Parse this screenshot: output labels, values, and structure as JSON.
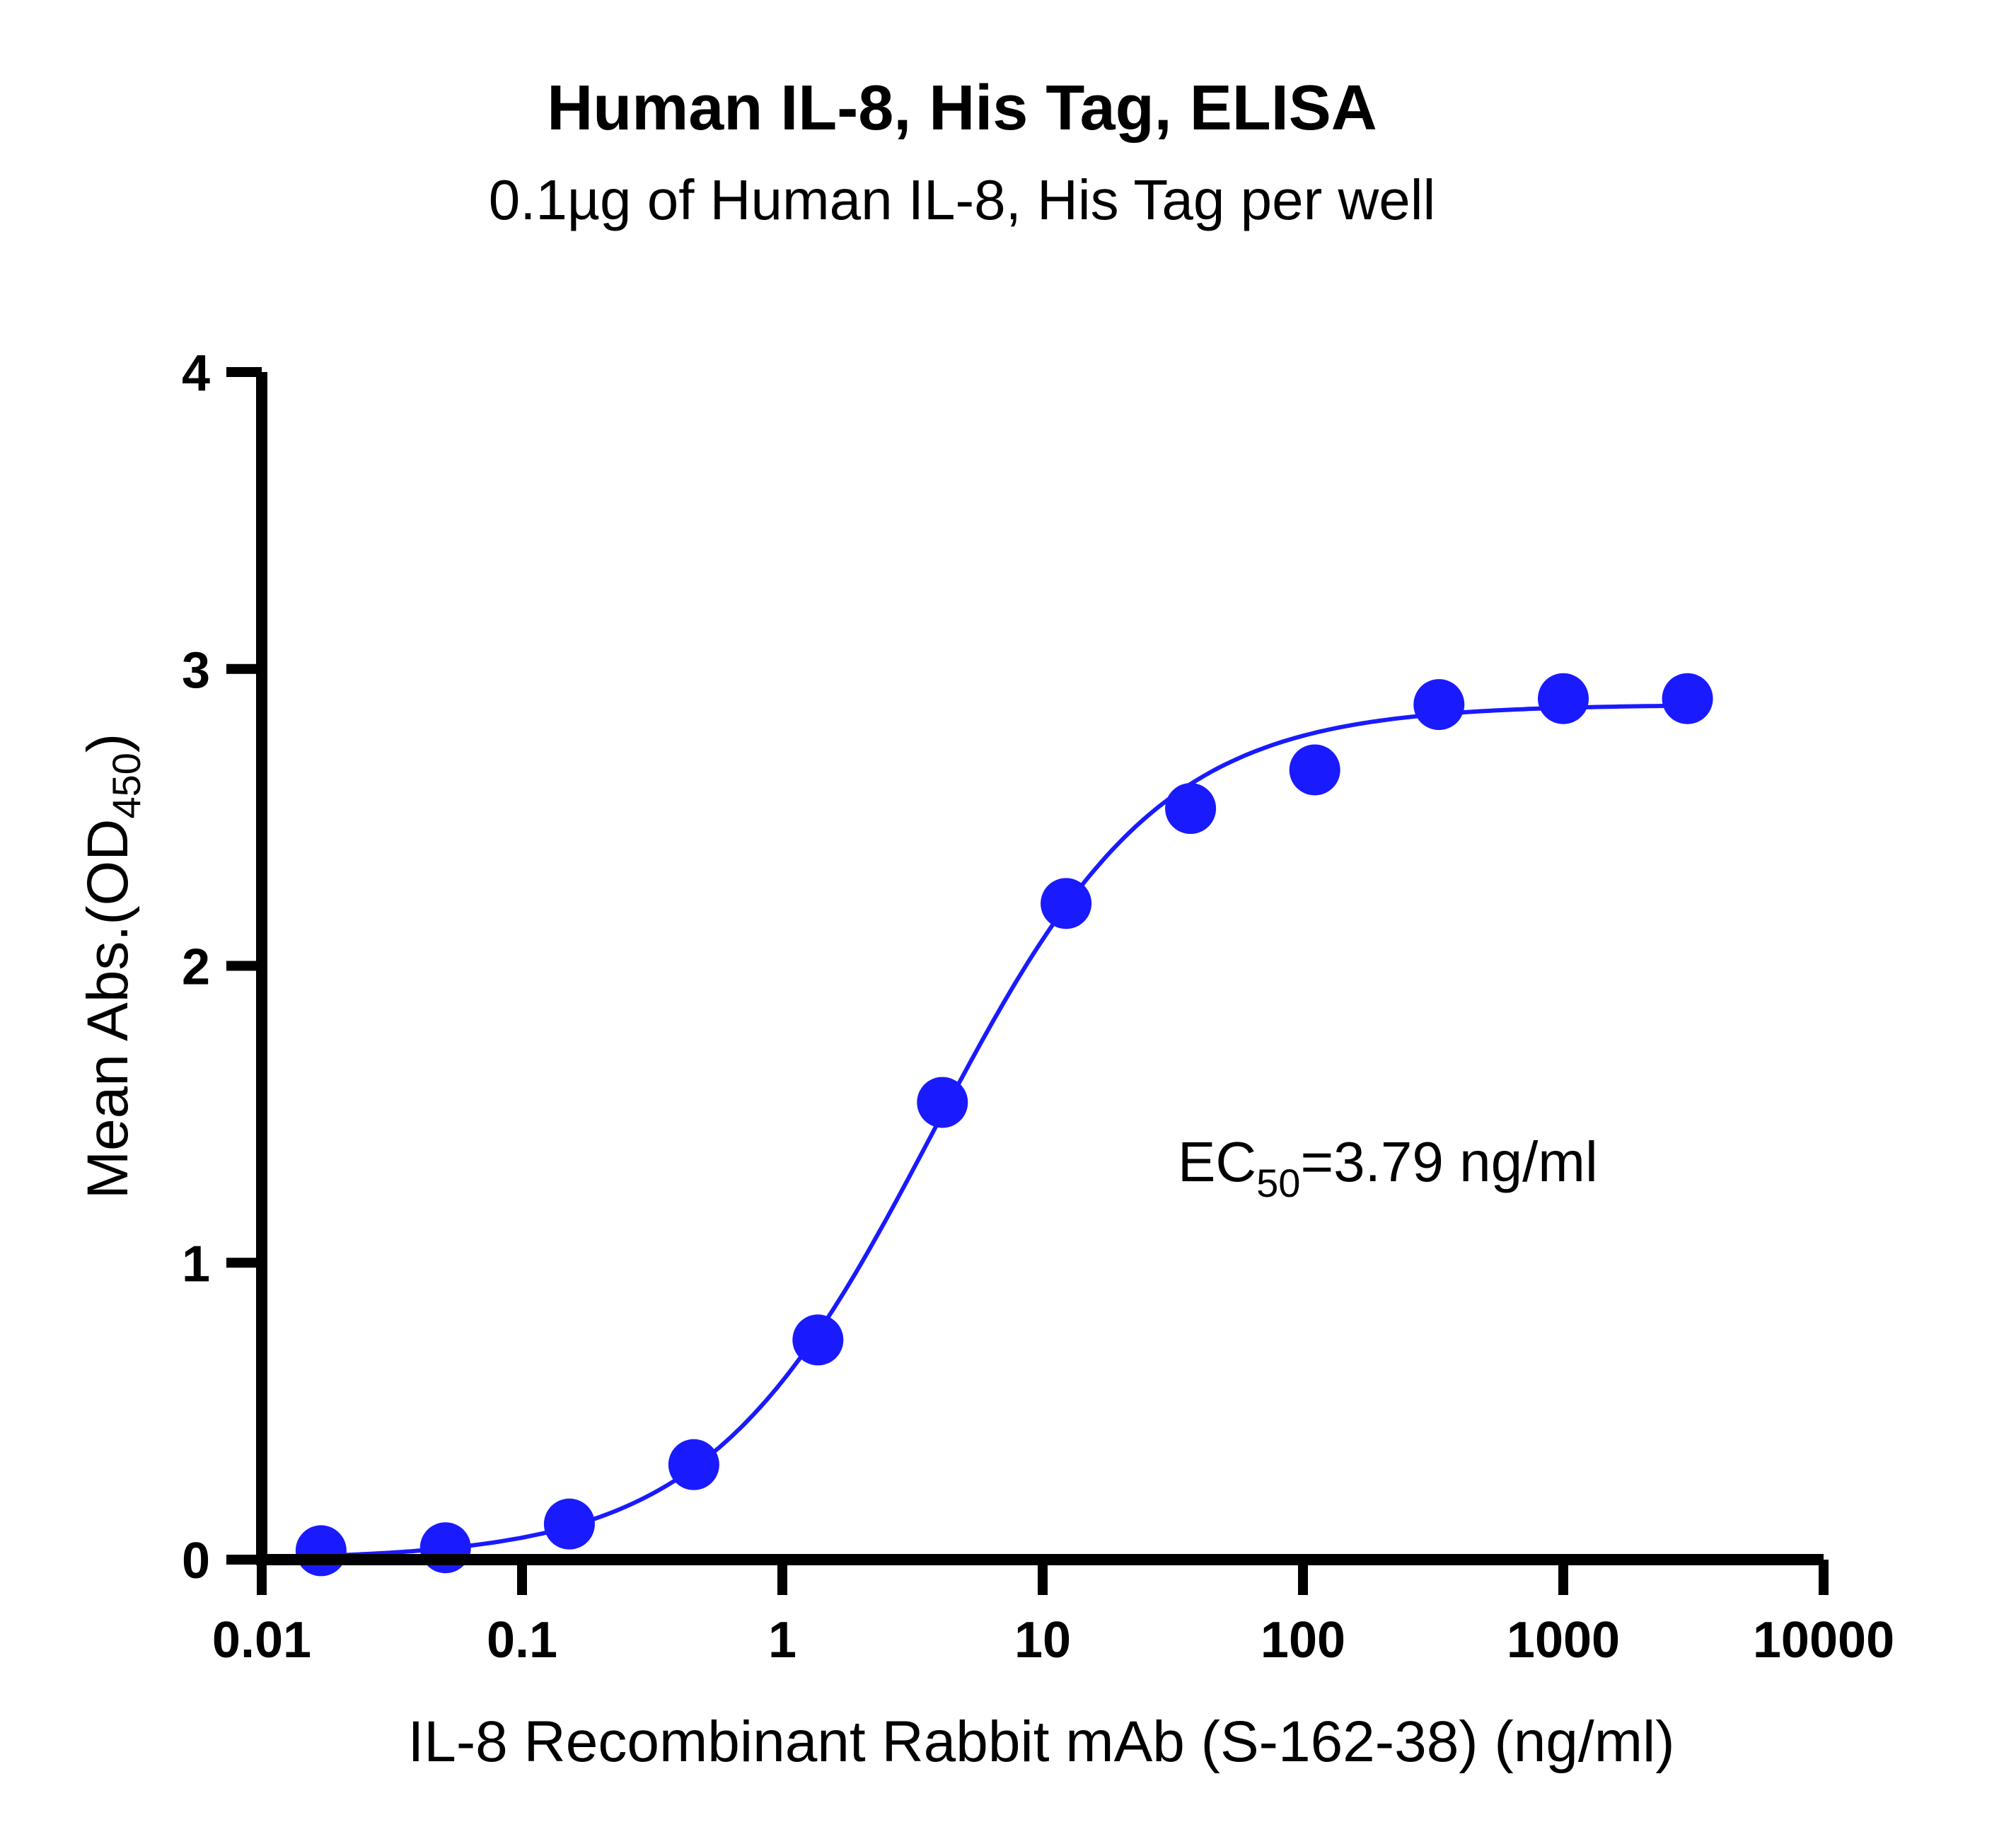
{
  "chart_data": {
    "type": "scatter",
    "title": "Human IL-8, His Tag, ELISA",
    "subtitle": "0.1µg of Human IL-8, His Tag per well",
    "xlabel": "IL-8 Recombinant Rabbit mAb (S-162-38) (ng/ml)",
    "ylabel": {
      "main": "Mean Abs.(OD",
      "sub": "450",
      "close": ")"
    },
    "x_scale": "log",
    "xlim": [
      0.01,
      10000
    ],
    "ylim": [
      0,
      4
    ],
    "x_ticks": [
      {
        "value": 0.01,
        "label": "0.01"
      },
      {
        "value": 0.1,
        "label": "0.1"
      },
      {
        "value": 1,
        "label": "1"
      },
      {
        "value": 10,
        "label": "10"
      },
      {
        "value": 100,
        "label": "100"
      },
      {
        "value": 1000,
        "label": "1000"
      },
      {
        "value": 10000,
        "label": "10000"
      }
    ],
    "y_ticks": [
      {
        "value": 0,
        "label": "0"
      },
      {
        "value": 1,
        "label": "1"
      },
      {
        "value": 2,
        "label": "2"
      },
      {
        "value": 3,
        "label": "3"
      },
      {
        "value": 4,
        "label": "4"
      }
    ],
    "grid": false,
    "series": [
      {
        "points": [
          {
            "x": 0.0169,
            "y": 0.03
          },
          {
            "x": 0.0508,
            "y": 0.04
          },
          {
            "x": 0.152,
            "y": 0.12
          },
          {
            "x": 0.457,
            "y": 0.32
          },
          {
            "x": 1.37,
            "y": 0.74
          },
          {
            "x": 4.12,
            "y": 1.54
          },
          {
            "x": 12.3,
            "y": 2.21
          },
          {
            "x": 37.0,
            "y": 2.53
          },
          {
            "x": 111,
            "y": 2.66
          },
          {
            "x": 333,
            "y": 2.88
          },
          {
            "x": 1000,
            "y": 2.9
          },
          {
            "x": 3000,
            "y": 2.9
          }
        ],
        "fit": {
          "model": "4PL",
          "bottom": 0.0,
          "top": 2.88,
          "ec50": 3.79,
          "hill": 1.0
        },
        "color": "#1a1aff"
      }
    ],
    "annotation": {
      "prefix": "EC",
      "sub": "50",
      "suffix": "=3.79 ng/ml"
    }
  }
}
